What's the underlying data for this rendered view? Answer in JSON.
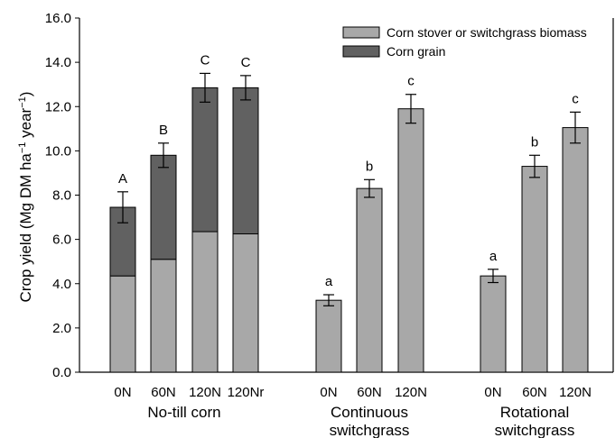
{
  "chart_data": {
    "type": "bar",
    "stacked": true,
    "ylabel": {
      "main": "Crop yield (Mg DM ha",
      "sup1": "−1",
      "mid": " year",
      "sup2": "−1",
      "close": ")"
    },
    "ylim": [
      0,
      16
    ],
    "yticks": [
      "0.0",
      "2.0",
      "4.0",
      "6.0",
      "8.0",
      "10.0",
      "12.0",
      "14.0",
      "16.0"
    ],
    "grid": false,
    "legend_position": "top-right",
    "series": [
      {
        "name": "Corn stover or switchgrass biomass",
        "color": "#a8a8a8"
      },
      {
        "name": "Corn grain",
        "color": "#616161"
      }
    ],
    "groups": [
      {
        "label_lines": [
          "No-till corn"
        ],
        "bars": [
          {
            "category": "0N",
            "biomass": 4.35,
            "grain": 3.1,
            "total": 7.45,
            "error": 0.7,
            "letter": "A"
          },
          {
            "category": "60N",
            "biomass": 5.1,
            "grain": 4.7,
            "total": 9.8,
            "error": 0.55,
            "letter": "B"
          },
          {
            "category": "120N",
            "biomass": 6.35,
            "grain": 6.5,
            "total": 12.85,
            "error": 0.65,
            "letter": "C"
          },
          {
            "category": "120Nr",
            "biomass": 6.25,
            "grain": 6.6,
            "total": 12.85,
            "error": 0.55,
            "letter": "C"
          }
        ]
      },
      {
        "label_lines": [
          "Continuous",
          "switchgrass"
        ],
        "bars": [
          {
            "category": "0N",
            "biomass": 3.25,
            "grain": 0,
            "total": 3.25,
            "error": 0.25,
            "letter": "a"
          },
          {
            "category": "60N",
            "biomass": 8.3,
            "grain": 0,
            "total": 8.3,
            "error": 0.4,
            "letter": "b"
          },
          {
            "category": "120N",
            "biomass": 11.9,
            "grain": 0,
            "total": 11.9,
            "error": 0.65,
            "letter": "c"
          }
        ]
      },
      {
        "label_lines": [
          "Rotational",
          "switchgrass"
        ],
        "bars": [
          {
            "category": "0N",
            "biomass": 4.35,
            "grain": 0,
            "total": 4.35,
            "error": 0.3,
            "letter": "a"
          },
          {
            "category": "60N",
            "biomass": 9.3,
            "grain": 0,
            "total": 9.3,
            "error": 0.5,
            "letter": "b"
          },
          {
            "category": "120N",
            "biomass": 11.05,
            "grain": 0,
            "total": 11.05,
            "error": 0.7,
            "letter": "c"
          }
        ]
      }
    ]
  }
}
